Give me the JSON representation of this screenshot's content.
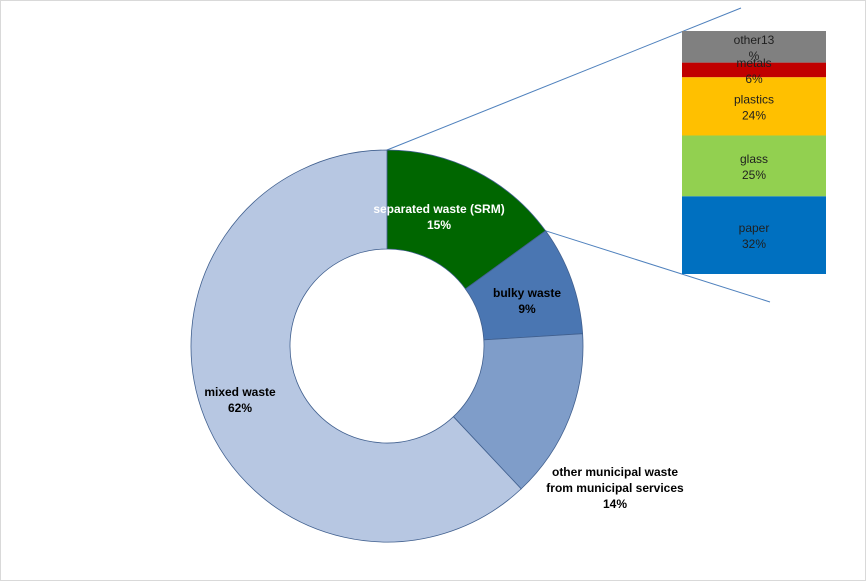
{
  "chart_data": [
    {
      "type": "doughnut",
      "title": "",
      "slices": [
        {
          "name": "separated waste (SRM)",
          "value": 15,
          "label": "15%",
          "color": "#006600",
          "text_color": "#ffffff"
        },
        {
          "name": "bulky waste",
          "value": 9,
          "label": "9%",
          "color": "#4a76b2",
          "text_color": "#000000"
        },
        {
          "name": "other municipal  waste from municipal  services",
          "value": 14,
          "label": "14%",
          "color": "#7f9dc9",
          "text_color": "#000000"
        },
        {
          "name": "mixed waste",
          "value": 62,
          "label": "62%",
          "color": "#b7c7e2",
          "text_color": "#000000"
        }
      ],
      "legend": "none"
    },
    {
      "type": "bar",
      "stacked": true,
      "title": "",
      "breakdown_of": "separated waste (SRM)",
      "segments": [
        {
          "name": "paper",
          "value": 32,
          "label": "32%",
          "color": "#0070c0"
        },
        {
          "name": "glass",
          "value": 25,
          "label": "25%",
          "color": "#92d050"
        },
        {
          "name": "plastics",
          "value": 24,
          "label": "24%",
          "color": "#ffc000"
        },
        {
          "name": "metals",
          "value": 6,
          "label": "6%",
          "color": "#c00000"
        },
        {
          "name": "other13",
          "value": 13,
          "label": "%",
          "color": "#808080"
        }
      ],
      "legend": "none"
    }
  ]
}
